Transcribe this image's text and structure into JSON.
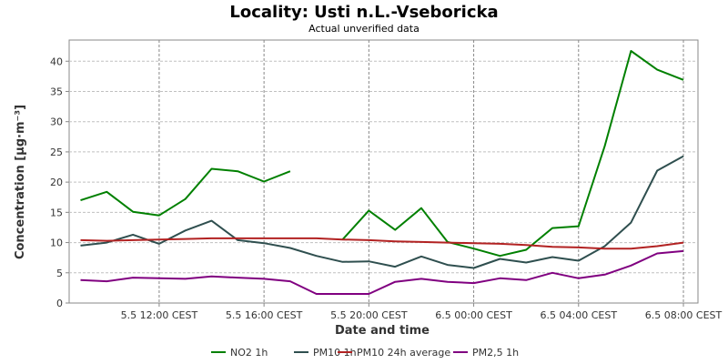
{
  "chart_data": {
    "type": "line",
    "title": "Locality: Usti n.L.-Vseboricka",
    "subtitle": "Actual unverified data",
    "xlabel": "Date and time",
    "ylabel": "Concentration [µg·m⁻³]",
    "ylim": [
      0,
      43.5
    ],
    "yticks": [
      0,
      5,
      10,
      15,
      20,
      25,
      30,
      35,
      40
    ],
    "xlim": [
      0,
      24.5
    ],
    "x_ticks": [
      {
        "x": 3,
        "label": "5.5 12:00 CEST"
      },
      {
        "x": 7,
        "label": "5.5 16:00 CEST"
      },
      {
        "x": 11,
        "label": "5.5 20:00 CEST"
      },
      {
        "x": 15,
        "label": "6.5 00:00 CEST"
      },
      {
        "x": 19,
        "label": "6.5 04:00 CEST"
      },
      {
        "x": 23,
        "label": "6.5 08:00 CEST"
      }
    ],
    "x": [
      0,
      1,
      2,
      3,
      4,
      5,
      6,
      7,
      8,
      9,
      10,
      11,
      12,
      13,
      14,
      15,
      16,
      17,
      18,
      19,
      20,
      21,
      22,
      23
    ],
    "grid": true,
    "legend_position": "bottom",
    "series": [
      {
        "name": "NO2 1h",
        "color": "#008000",
        "values": [
          17.0,
          18.4,
          15.1,
          14.5,
          17.2,
          22.2,
          21.8,
          20.1,
          21.8,
          null,
          10.5,
          15.3,
          12.1,
          15.7,
          10.1,
          9.0,
          7.8,
          8.8,
          12.4,
          12.7,
          26.0,
          41.7,
          38.6,
          36.9
        ]
      },
      {
        "name": "PM10 1h",
        "color": "#2f4f4f",
        "values": [
          9.5,
          10.0,
          11.3,
          9.8,
          12.0,
          13.6,
          10.4,
          9.9,
          9.1,
          7.8,
          6.8,
          6.9,
          6.0,
          7.7,
          6.3,
          5.8,
          7.3,
          6.7,
          7.6,
          7.0,
          9.4,
          13.3,
          21.9,
          24.3
        ]
      },
      {
        "name": "PM10 24h average",
        "color": "#b22222",
        "values": [
          10.4,
          10.3,
          10.4,
          10.5,
          10.6,
          10.7,
          10.7,
          10.7,
          10.7,
          10.7,
          10.5,
          10.4,
          10.2,
          10.1,
          10.0,
          9.9,
          9.8,
          9.6,
          9.3,
          9.2,
          9.0,
          9.0,
          9.4,
          10.0
        ]
      },
      {
        "name": "PM2,5 1h",
        "color": "#800080",
        "values": [
          3.8,
          3.6,
          4.2,
          4.1,
          4.0,
          4.4,
          4.2,
          4.0,
          3.6,
          1.5,
          1.5,
          1.5,
          3.5,
          4.0,
          3.5,
          3.3,
          4.1,
          3.8,
          5.0,
          4.1,
          4.7,
          6.2,
          8.2,
          8.6
        ]
      }
    ]
  }
}
